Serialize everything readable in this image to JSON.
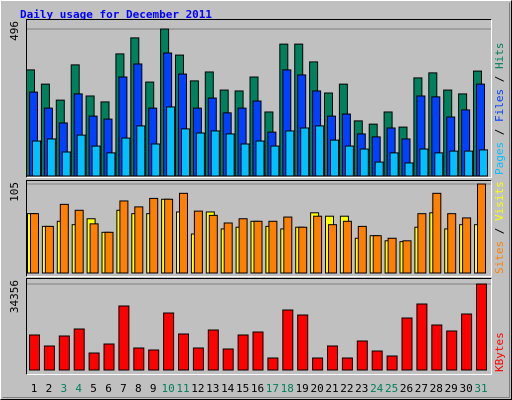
{
  "chart_data": [
    {
      "type": "bar",
      "title": "Daily usage for December 2011",
      "legend_separator": " / ",
      "ylim": [
        0,
        496
      ],
      "yticks": [
        496
      ],
      "series": [
        {
          "name": "Hits",
          "color": "#00805c",
          "values": [
            358,
            310,
            256,
            375,
            270,
            250,
            412,
            466,
            317,
            496,
            408,
            321,
            351,
            290,
            287,
            334,
            216,
            445,
            445,
            385,
            280,
            310,
            186,
            175,
            216,
            165,
            331,
            348,
            290,
            277,
            354
          ]
        },
        {
          "name": "Files",
          "color": "#0040ff",
          "values": [
            283,
            229,
            179,
            277,
            202,
            192,
            334,
            378,
            229,
            415,
            344,
            229,
            263,
            213,
            229,
            253,
            148,
            358,
            341,
            287,
            202,
            209,
            142,
            132,
            162,
            125,
            270,
            267,
            199,
            223,
            310
          ]
        },
        {
          "name": "Pages",
          "color": "#00c0ff",
          "values": [
            118,
            125,
            81,
            138,
            101,
            78,
            128,
            169,
            108,
            233,
            159,
            145,
            152,
            142,
            108,
            118,
            101,
            152,
            162,
            169,
            121,
            101,
            91,
            47,
            78,
            44,
            91,
            78,
            84,
            84,
            88
          ]
        }
      ]
    },
    {
      "type": "bar",
      "legend_separator": " / ",
      "ylim": [
        0,
        105
      ],
      "yticks": [
        105
      ],
      "series": [
        {
          "name": "Visits",
          "color": "#ffff00",
          "values": [
            70,
            55,
            61,
            57,
            64,
            48,
            74,
            70,
            70,
            87,
            72,
            46,
            72,
            52,
            54,
            61,
            55,
            52,
            54,
            71,
            67,
            67,
            41,
            44,
            38,
            37,
            54,
            71,
            52,
            57,
            57
          ]
        },
        {
          "name": "Sites",
          "color": "#ff8000",
          "values": [
            70,
            55,
            81,
            74,
            58,
            48,
            85,
            78,
            88,
            87,
            94,
            73,
            68,
            59,
            64,
            61,
            61,
            66,
            54,
            67,
            57,
            61,
            55,
            44,
            41,
            38,
            70,
            94,
            70,
            65,
            105
          ]
        }
      ]
    },
    {
      "type": "bar",
      "ylim": [
        0,
        34356
      ],
      "yticks": [
        34356
      ],
      "categories": [
        "1",
        "2",
        "3",
        "4",
        "5",
        "6",
        "7",
        "8",
        "9",
        "10",
        "11",
        "12",
        "13",
        "14",
        "15",
        "16",
        "17",
        "18",
        "19",
        "20",
        "21",
        "22",
        "23",
        "24",
        "25",
        "26",
        "27",
        "28",
        "29",
        "30",
        "31"
      ],
      "category_colors": [
        "#000000",
        "#000000",
        "#00805c",
        "#00805c",
        "#000000",
        "#000000",
        "#000000",
        "#000000",
        "#000000",
        "#00805c",
        "#00805c",
        "#000000",
        "#000000",
        "#000000",
        "#000000",
        "#000000",
        "#00805c",
        "#00805c",
        "#000000",
        "#000000",
        "#000000",
        "#000000",
        "#000000",
        "#00805c",
        "#00805c",
        "#000000",
        "#000000",
        "#000000",
        "#000000",
        "#000000",
        "#00805c"
      ],
      "series": [
        {
          "name": "KBytes",
          "color": "#ff0000",
          "values": [
            13983,
            9588,
            13583,
            16380,
            6792,
            10387,
            25568,
            8789,
            7990,
            22772,
            14382,
            8789,
            15980,
            8390,
            13983,
            15181,
            4794,
            23970,
            21973,
            4794,
            9588,
            4794,
            11586,
            7591,
            5593,
            20774,
            26367,
            17978,
            15581,
            22372,
            34356
          ]
        }
      ]
    }
  ]
}
